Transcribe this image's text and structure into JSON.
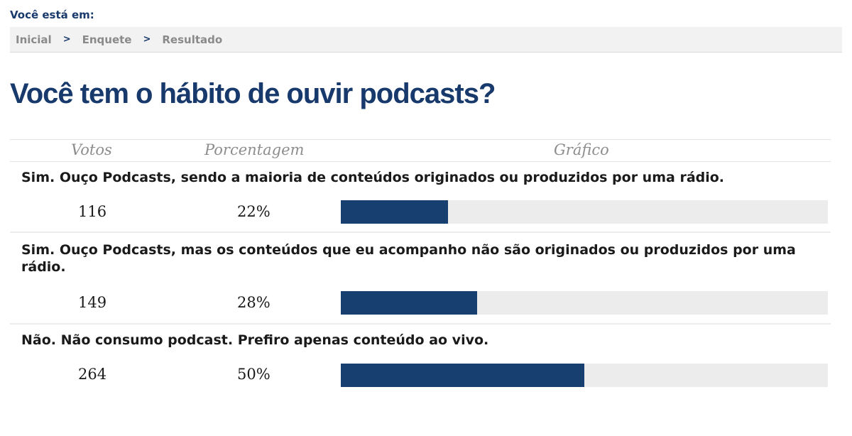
{
  "location_label": "Você está em:",
  "breadcrumb": {
    "items": [
      "Inicial",
      "Enquete",
      "Resultado"
    ],
    "separator": ">"
  },
  "question": "Você tem o hábito de ouvir podcasts?",
  "columns": {
    "votes": "Votos",
    "percentage": "Porcentagem",
    "chart": "Gráfico"
  },
  "results": [
    {
      "label": "Sim. Ouço Podcasts, sendo a maioria de conteúdos originados ou produzidos por uma rádio.",
      "votes": "116",
      "percentage_text": "22%",
      "fraction": 0.22
    },
    {
      "label": "Sim. Ouço Podcasts, mas os conteúdos que eu acompanho não são originados ou produzidos por uma rádio.",
      "votes": "149",
      "percentage_text": "28%",
      "fraction": 0.28
    },
    {
      "label": "Não. Não consumo podcast. Prefiro apenas conteúdo ao vivo.",
      "votes": "264",
      "percentage_text": "50%",
      "fraction": 0.5
    }
  ],
  "colors": {
    "bar_fill": "#173f70",
    "bar_track": "#ececec",
    "title": "#17396b"
  }
}
